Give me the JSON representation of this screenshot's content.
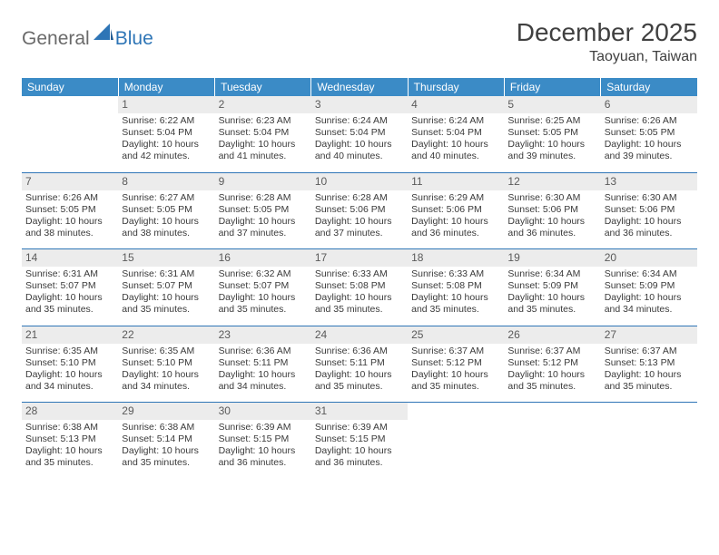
{
  "brand": {
    "text1": "General",
    "text2": "Blue"
  },
  "title": "December 2025",
  "location": "Taoyuan, Taiwan",
  "colors": {
    "header_bg": "#3b8bc6",
    "header_text": "#ffffff",
    "rule": "#2e75b6",
    "daynum_bg": "#ececec",
    "body_text": "#3a3a3a",
    "logo_gray": "#6a6a6a",
    "logo_blue": "#2e75b6",
    "page_bg": "#ffffff"
  },
  "typography": {
    "title_pt": 28,
    "location_pt": 16,
    "dow_pt": 12,
    "cell_pt": 10.5
  },
  "dow": [
    "Sunday",
    "Monday",
    "Tuesday",
    "Wednesday",
    "Thursday",
    "Friday",
    "Saturday"
  ],
  "weeks": [
    [
      null,
      {
        "n": "1",
        "sr": "Sunrise: 6:22 AM",
        "ss": "Sunset: 5:04 PM",
        "dl": "Daylight: 10 hours and 42 minutes."
      },
      {
        "n": "2",
        "sr": "Sunrise: 6:23 AM",
        "ss": "Sunset: 5:04 PM",
        "dl": "Daylight: 10 hours and 41 minutes."
      },
      {
        "n": "3",
        "sr": "Sunrise: 6:24 AM",
        "ss": "Sunset: 5:04 PM",
        "dl": "Daylight: 10 hours and 40 minutes."
      },
      {
        "n": "4",
        "sr": "Sunrise: 6:24 AM",
        "ss": "Sunset: 5:04 PM",
        "dl": "Daylight: 10 hours and 40 minutes."
      },
      {
        "n": "5",
        "sr": "Sunrise: 6:25 AM",
        "ss": "Sunset: 5:05 PM",
        "dl": "Daylight: 10 hours and 39 minutes."
      },
      {
        "n": "6",
        "sr": "Sunrise: 6:26 AM",
        "ss": "Sunset: 5:05 PM",
        "dl": "Daylight: 10 hours and 39 minutes."
      }
    ],
    [
      {
        "n": "7",
        "sr": "Sunrise: 6:26 AM",
        "ss": "Sunset: 5:05 PM",
        "dl": "Daylight: 10 hours and 38 minutes."
      },
      {
        "n": "8",
        "sr": "Sunrise: 6:27 AM",
        "ss": "Sunset: 5:05 PM",
        "dl": "Daylight: 10 hours and 38 minutes."
      },
      {
        "n": "9",
        "sr": "Sunrise: 6:28 AM",
        "ss": "Sunset: 5:05 PM",
        "dl": "Daylight: 10 hours and 37 minutes."
      },
      {
        "n": "10",
        "sr": "Sunrise: 6:28 AM",
        "ss": "Sunset: 5:06 PM",
        "dl": "Daylight: 10 hours and 37 minutes."
      },
      {
        "n": "11",
        "sr": "Sunrise: 6:29 AM",
        "ss": "Sunset: 5:06 PM",
        "dl": "Daylight: 10 hours and 36 minutes."
      },
      {
        "n": "12",
        "sr": "Sunrise: 6:30 AM",
        "ss": "Sunset: 5:06 PM",
        "dl": "Daylight: 10 hours and 36 minutes."
      },
      {
        "n": "13",
        "sr": "Sunrise: 6:30 AM",
        "ss": "Sunset: 5:06 PM",
        "dl": "Daylight: 10 hours and 36 minutes."
      }
    ],
    [
      {
        "n": "14",
        "sr": "Sunrise: 6:31 AM",
        "ss": "Sunset: 5:07 PM",
        "dl": "Daylight: 10 hours and 35 minutes."
      },
      {
        "n": "15",
        "sr": "Sunrise: 6:31 AM",
        "ss": "Sunset: 5:07 PM",
        "dl": "Daylight: 10 hours and 35 minutes."
      },
      {
        "n": "16",
        "sr": "Sunrise: 6:32 AM",
        "ss": "Sunset: 5:07 PM",
        "dl": "Daylight: 10 hours and 35 minutes."
      },
      {
        "n": "17",
        "sr": "Sunrise: 6:33 AM",
        "ss": "Sunset: 5:08 PM",
        "dl": "Daylight: 10 hours and 35 minutes."
      },
      {
        "n": "18",
        "sr": "Sunrise: 6:33 AM",
        "ss": "Sunset: 5:08 PM",
        "dl": "Daylight: 10 hours and 35 minutes."
      },
      {
        "n": "19",
        "sr": "Sunrise: 6:34 AM",
        "ss": "Sunset: 5:09 PM",
        "dl": "Daylight: 10 hours and 35 minutes."
      },
      {
        "n": "20",
        "sr": "Sunrise: 6:34 AM",
        "ss": "Sunset: 5:09 PM",
        "dl": "Daylight: 10 hours and 34 minutes."
      }
    ],
    [
      {
        "n": "21",
        "sr": "Sunrise: 6:35 AM",
        "ss": "Sunset: 5:10 PM",
        "dl": "Daylight: 10 hours and 34 minutes."
      },
      {
        "n": "22",
        "sr": "Sunrise: 6:35 AM",
        "ss": "Sunset: 5:10 PM",
        "dl": "Daylight: 10 hours and 34 minutes."
      },
      {
        "n": "23",
        "sr": "Sunrise: 6:36 AM",
        "ss": "Sunset: 5:11 PM",
        "dl": "Daylight: 10 hours and 34 minutes."
      },
      {
        "n": "24",
        "sr": "Sunrise: 6:36 AM",
        "ss": "Sunset: 5:11 PM",
        "dl": "Daylight: 10 hours and 35 minutes."
      },
      {
        "n": "25",
        "sr": "Sunrise: 6:37 AM",
        "ss": "Sunset: 5:12 PM",
        "dl": "Daylight: 10 hours and 35 minutes."
      },
      {
        "n": "26",
        "sr": "Sunrise: 6:37 AM",
        "ss": "Sunset: 5:12 PM",
        "dl": "Daylight: 10 hours and 35 minutes."
      },
      {
        "n": "27",
        "sr": "Sunrise: 6:37 AM",
        "ss": "Sunset: 5:13 PM",
        "dl": "Daylight: 10 hours and 35 minutes."
      }
    ],
    [
      {
        "n": "28",
        "sr": "Sunrise: 6:38 AM",
        "ss": "Sunset: 5:13 PM",
        "dl": "Daylight: 10 hours and 35 minutes."
      },
      {
        "n": "29",
        "sr": "Sunrise: 6:38 AM",
        "ss": "Sunset: 5:14 PM",
        "dl": "Daylight: 10 hours and 35 minutes."
      },
      {
        "n": "30",
        "sr": "Sunrise: 6:39 AM",
        "ss": "Sunset: 5:15 PM",
        "dl": "Daylight: 10 hours and 36 minutes."
      },
      {
        "n": "31",
        "sr": "Sunrise: 6:39 AM",
        "ss": "Sunset: 5:15 PM",
        "dl": "Daylight: 10 hours and 36 minutes."
      },
      null,
      null,
      null
    ]
  ]
}
